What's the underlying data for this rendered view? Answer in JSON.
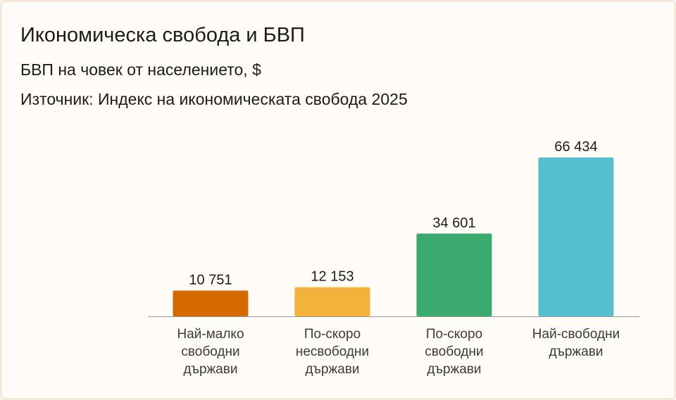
{
  "title": "Икономическа свобода и БВП",
  "subtitle": "БВП на човек от населението, $",
  "source": "Източник: Индекс на икономическата свобода 2025",
  "chart_data": {
    "type": "bar",
    "categories": [
      [
        "Най-малко",
        "свободни",
        "държави"
      ],
      [
        "По-скоро",
        "несвободни",
        "държави"
      ],
      [
        "По-скоро",
        "свободни",
        "държави"
      ],
      [
        "Най-свободни",
        "държави"
      ]
    ],
    "values": [
      10751,
      12153,
      34601,
      66434
    ],
    "value_labels": [
      "10 751",
      "12 153",
      "34 601",
      "66 434"
    ],
    "colors": [
      "#d46a00",
      "#f3b33b",
      "#3aaa6e",
      "#57c0d0"
    ],
    "ylim": [
      0,
      66434
    ],
    "grid": false,
    "legend": "none"
  }
}
